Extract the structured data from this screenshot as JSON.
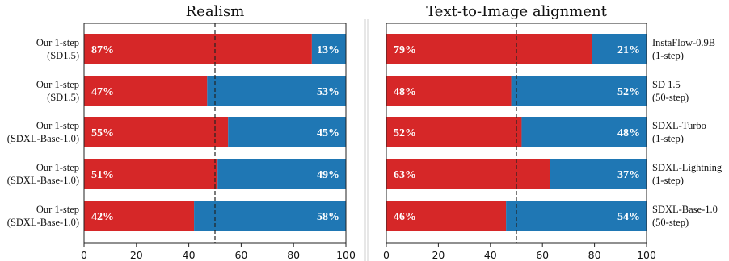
{
  "chart_data": [
    {
      "type": "bar",
      "orientation": "horizontal",
      "stacked": true,
      "title": "Realism",
      "categories": [
        "Our 1-step\n(SD1.5)",
        "Our 1-step\n(SD1.5)",
        "Our 1-step\n(SDXL-Base-1.0)",
        "Our 1-step\n(SDXL-Base-1.0)",
        "Our 1-step\n(SDXL-Base-1.0)"
      ],
      "series": [
        {
          "values": [
            87,
            47,
            55,
            51,
            42
          ],
          "labels": [
            "87%",
            "47%",
            "55%",
            "51%",
            "42%"
          ]
        },
        {
          "values": [
            13,
            53,
            45,
            49,
            58
          ],
          "labels": [
            "13%",
            "53%",
            "45%",
            "49%",
            "58%"
          ]
        }
      ],
      "xlim": [
        0,
        100
      ],
      "xticks": [
        "0",
        "20",
        "40",
        "60",
        "80",
        "100"
      ],
      "reference_line": 50,
      "colors": [
        "#d62728",
        "#1f77b4"
      ]
    },
    {
      "type": "bar",
      "orientation": "horizontal",
      "stacked": true,
      "title": "Text-to-Image alignment",
      "categories": [
        "InstaFlow-0.9B\n(1-step)",
        "SD 1.5\n(50-step)",
        "SDXL-Turbo\n(1-step)",
        "SDXL-Lightning\n(1-step)",
        "SDXL-Base-1.0\n(50-step)"
      ],
      "series": [
        {
          "values": [
            79,
            48,
            52,
            63,
            46
          ],
          "labels": [
            "79%",
            "48%",
            "52%",
            "63%",
            "46%"
          ]
        },
        {
          "values": [
            21,
            52,
            48,
            37,
            54
          ],
          "labels": [
            "21%",
            "52%",
            "48%",
            "37%",
            "54%"
          ]
        }
      ],
      "xlim": [
        0,
        100
      ],
      "xticks": [
        "0",
        "20",
        "40",
        "60",
        "80",
        "100"
      ],
      "reference_line": 50,
      "colors": [
        "#d62728",
        "#1f77b4"
      ]
    }
  ]
}
